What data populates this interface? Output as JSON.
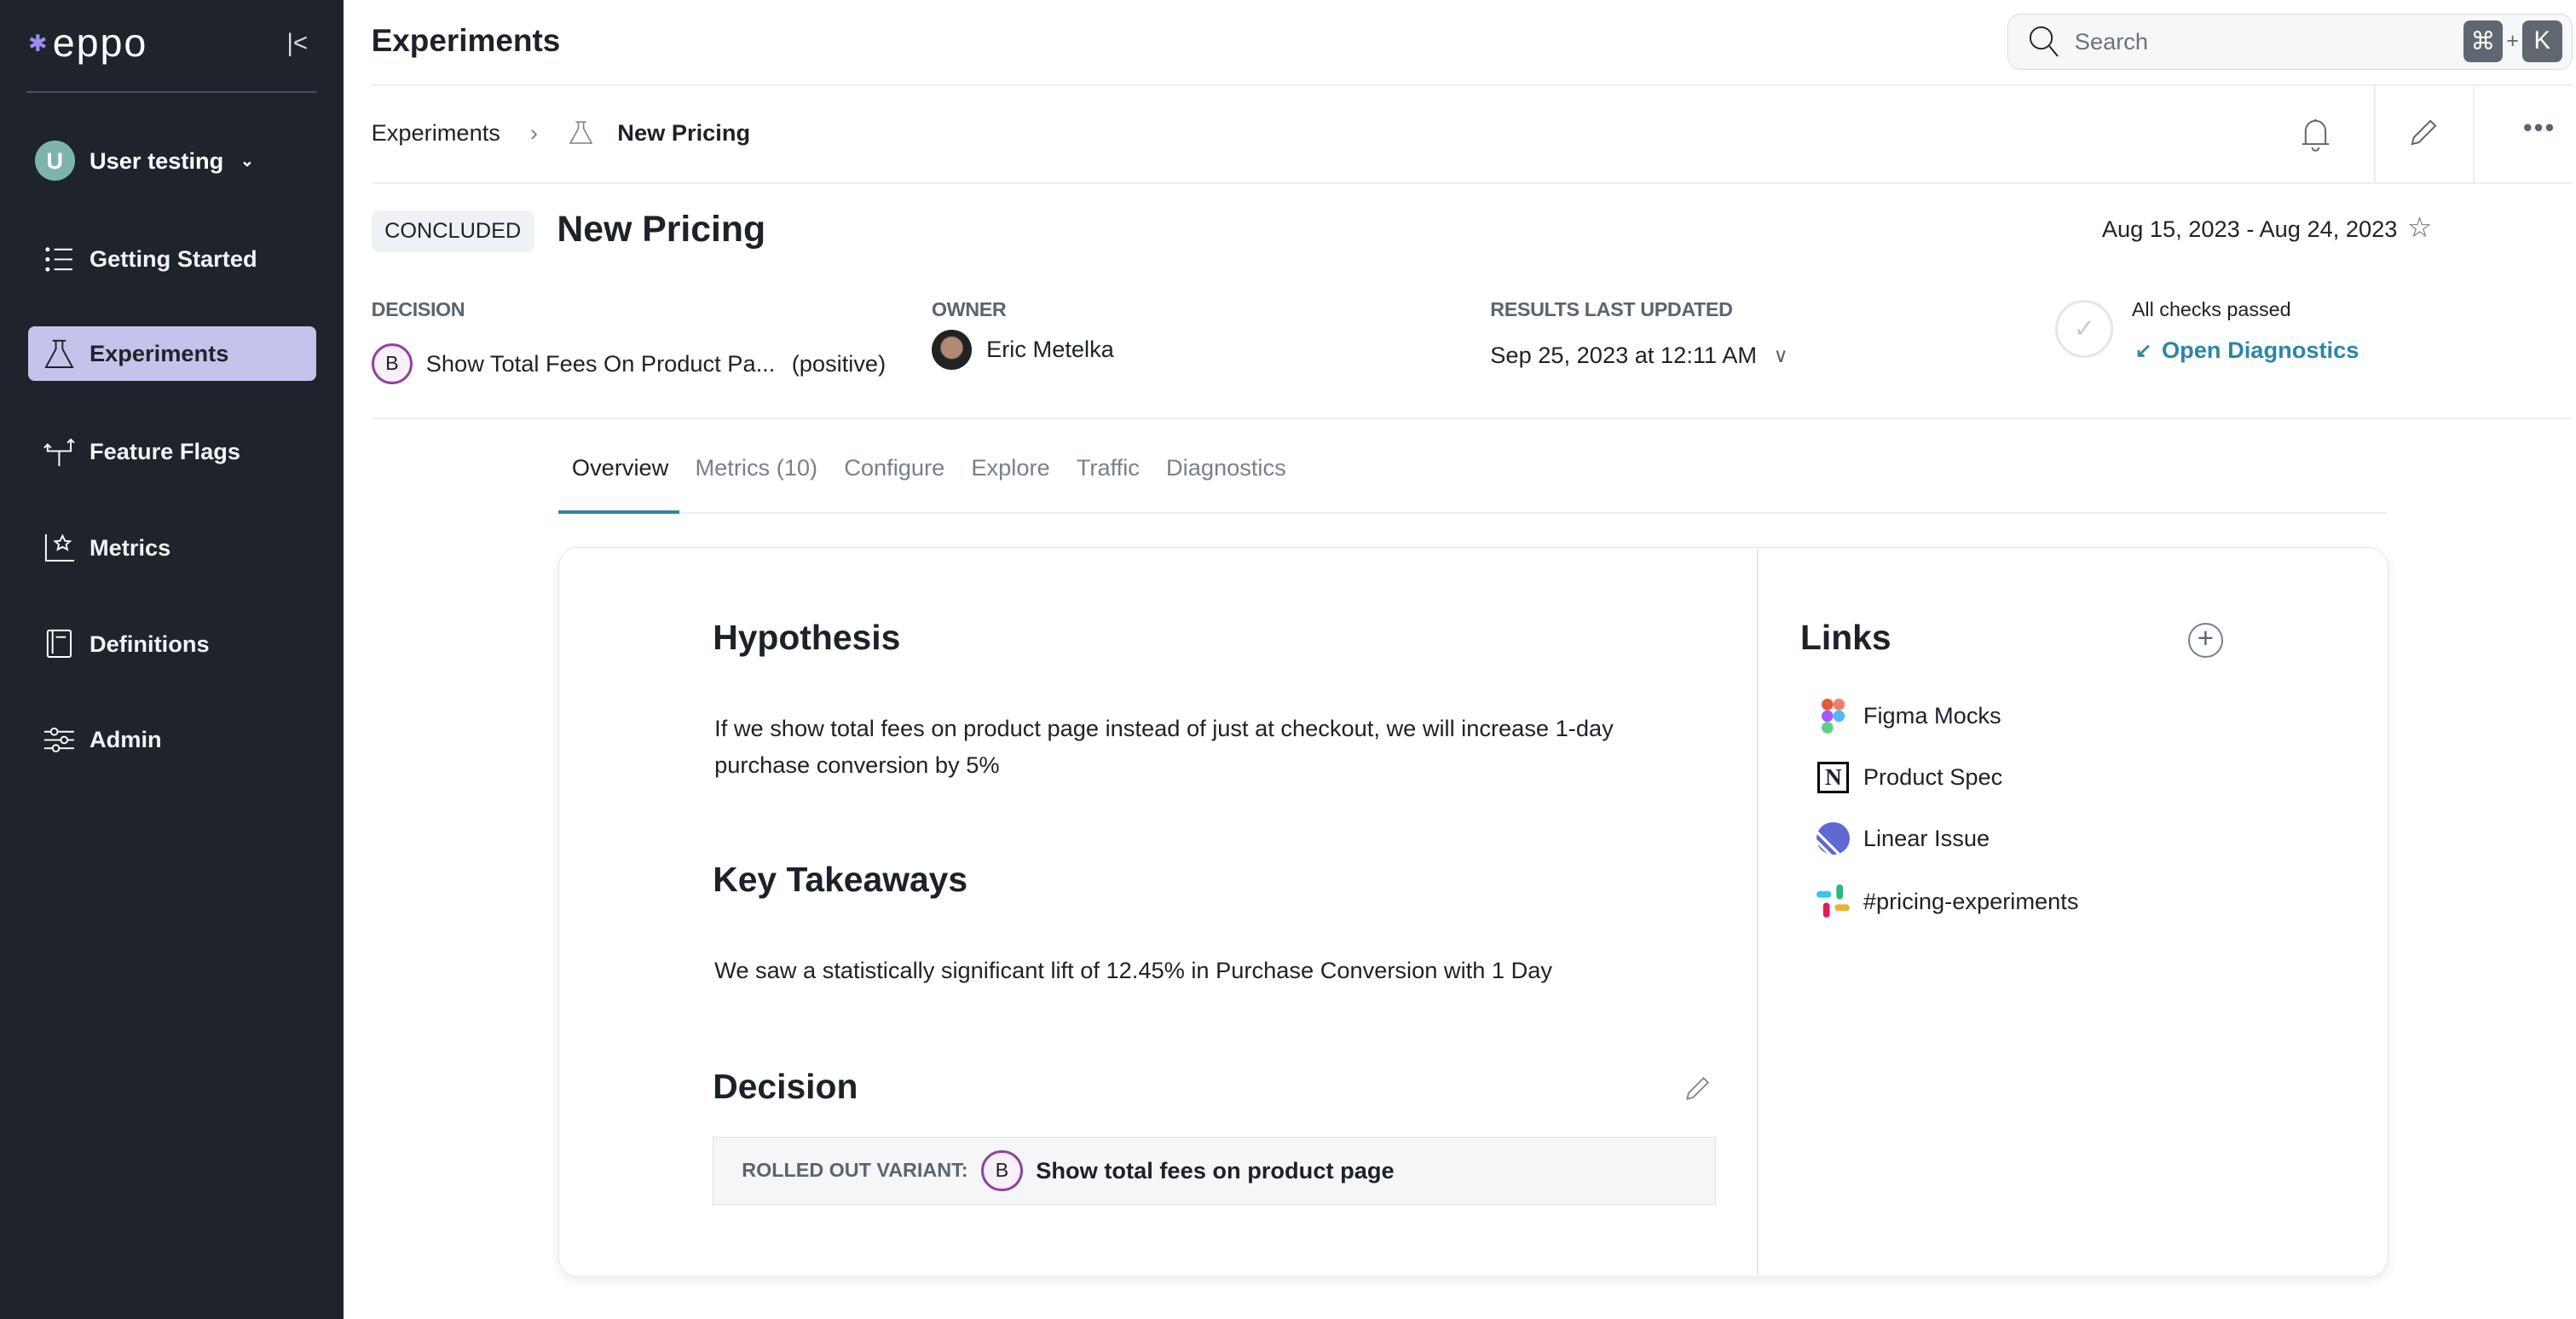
{
  "sidebar": {
    "logo": "eppo",
    "workspace": {
      "initial": "U",
      "name": "User testing"
    },
    "items": [
      {
        "label": "Getting Started",
        "icon": "list-icon"
      },
      {
        "label": "Experiments",
        "icon": "flask-icon",
        "active": true
      },
      {
        "label": "Feature Flags",
        "icon": "branch-icon"
      },
      {
        "label": "Metrics",
        "icon": "chart-star-icon"
      },
      {
        "label": "Definitions",
        "icon": "book-icon"
      },
      {
        "label": "Admin",
        "icon": "sliders-icon"
      }
    ],
    "active_color": "#c5c3ec"
  },
  "header": {
    "title": "Experiments",
    "search": {
      "placeholder": "Search",
      "shortcut_mod": "⌘",
      "shortcut_plus": "+",
      "shortcut_key": "K"
    }
  },
  "breadcrumb": {
    "parent": "Experiments",
    "current": "New Pricing"
  },
  "experiment": {
    "status": "CONCLUDED",
    "title": "New Pricing",
    "date_range": "Aug 15, 2023 - Aug 24, 2023",
    "decision_label": "DECISION",
    "decision_variant": "B",
    "decision_text": "Show Total Fees On Product Pa...",
    "decision_sentiment": "(positive)",
    "owner_label": "OWNER",
    "owner": "Eric Metelka",
    "updated_label": "RESULTS LAST UPDATED",
    "updated": "Sep 25, 2023 at 12:11 AM",
    "checks_text": "All checks passed",
    "diagnostics_link": "Open Diagnostics",
    "accent": "#2e85a3"
  },
  "tabs": [
    {
      "label": "Overview",
      "active": true
    },
    {
      "label": "Metrics (10)"
    },
    {
      "label": "Configure"
    },
    {
      "label": "Explore"
    },
    {
      "label": "Traffic"
    },
    {
      "label": "Diagnostics"
    }
  ],
  "overview": {
    "hypothesis_title": "Hypothesis",
    "hypothesis_text": "If we show total fees on product page instead of just at checkout, we will increase 1-day purchase conversion by 5%",
    "takeaways_title": "Key Takeaways",
    "takeaways_text": "We saw a statistically significant lift of 12.45% in Purchase Conversion with 1 Day",
    "decision_title": "Decision",
    "rolled_out_label": "ROLLED OUT VARIANT:",
    "rolled_out_variant": "B",
    "rolled_out_text": "Show total fees on product page"
  },
  "links": {
    "title": "Links",
    "items": [
      {
        "label": "Figma Mocks",
        "icon": "figma-icon"
      },
      {
        "label": "Product Spec",
        "icon": "notion-icon"
      },
      {
        "label": "Linear Issue",
        "icon": "linear-icon"
      },
      {
        "label": "#pricing-experiments",
        "icon": "slack-icon"
      }
    ]
  }
}
